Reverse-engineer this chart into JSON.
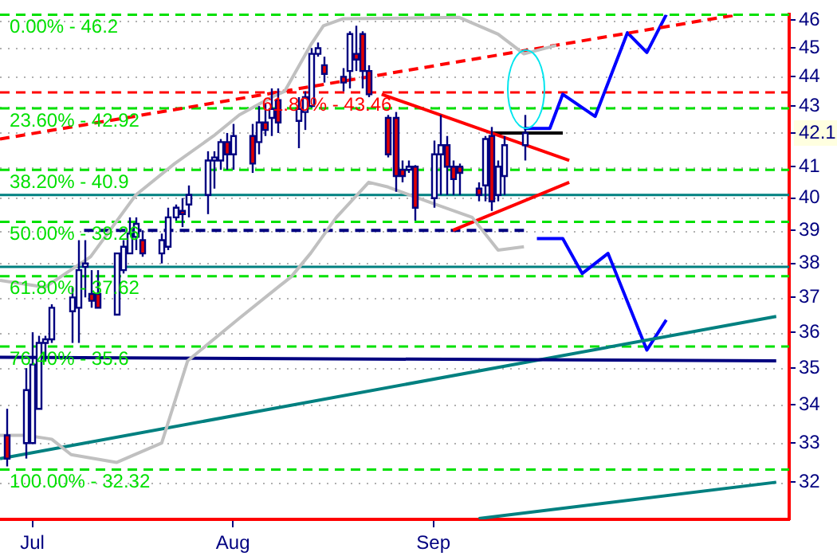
{
  "chart_data": {
    "type": "candlestick",
    "log": true,
    "grid": "y",
    "legend": false,
    "x": [
      "--06-27",
      "--06-30",
      "--07-01",
      "--07-02",
      "--07-03",
      "--07-04",
      "--07-07",
      "--07-08",
      "--07-09",
      "--07-10",
      "--07-11",
      "--07-14",
      "--07-15",
      "--07-16",
      "--07-17",
      "--07-18",
      "--07-21",
      "--07-22",
      "--07-23",
      "--07-24",
      "--07-25",
      "--07-28",
      "--07-29",
      "--07-30",
      "--07-31",
      "--08-01",
      "--08-04",
      "--08-05",
      "--08-06",
      "--08-07",
      "--08-08",
      "--08-11",
      "--08-12",
      "--08-13",
      "--08-14",
      "--08-15",
      "--08-18",
      "--08-19",
      "--08-20",
      "--08-21",
      "--08-22",
      "--08-25",
      "--08-26",
      "--08-27",
      "--08-28",
      "--08-29",
      "--09-01",
      "--09-02",
      "--09-03",
      "--09-04",
      "--09-05",
      "--09-08",
      "--09-09",
      "--09-10",
      "--09-11",
      "--09-12",
      "--09-15"
    ],
    "ohlc": [
      [
        33.2,
        33.9,
        32.4,
        32.6
      ],
      [
        33.0,
        35.0,
        32.6,
        34.4
      ],
      [
        33.0,
        36.0,
        33.0,
        35.1
      ],
      [
        33.9,
        35.9,
        33.9,
        35.7
      ],
      [
        35.7,
        35.9,
        35.2,
        35.8
      ],
      [
        35.8,
        36.8,
        35.7,
        36.7
      ],
      [
        36.6,
        37.3,
        35.7,
        37.0
      ],
      [
        36.7,
        38.7,
        35.7,
        37.8
      ],
      [
        37.9,
        38.7,
        37.0,
        38.0
      ],
      [
        37.1,
        37.8,
        36.7,
        36.9
      ],
      [
        37.1,
        37.8,
        36.7,
        36.7
      ],
      [
        36.5,
        38.3,
        36.5,
        38.3
      ],
      [
        37.8,
        38.7,
        37.7,
        38.5
      ],
      [
        38.3,
        39.4,
        38.3,
        38.9
      ],
      [
        38.8,
        39.4,
        38.4,
        39.2
      ],
      [
        38.7,
        39.0,
        38.2,
        38.3
      ],
      [
        38.3,
        38.9,
        38.0,
        38.7
      ],
      [
        38.5,
        39.7,
        38.4,
        39.4
      ],
      [
        39.4,
        39.8,
        39.3,
        39.7
      ],
      [
        39.6,
        40.0,
        39.1,
        39.5
      ],
      [
        39.8,
        40.4,
        39.4,
        40.1
      ],
      [
        40.1,
        41.5,
        39.5,
        41.2
      ],
      [
        41.2,
        41.5,
        40.3,
        41.3
      ],
      [
        41.2,
        41.9,
        40.9,
        41.8
      ],
      [
        41.8,
        42.1,
        40.9,
        41.4
      ],
      [
        41.4,
        42.4,
        40.9,
        42.0
      ],
      [
        42.0,
        42.4,
        40.8,
        41.1
      ],
      [
        41.8,
        43.0,
        41.4,
        42.45
      ],
      [
        42.45,
        43.1,
        42.0,
        42.2
      ],
      [
        42.6,
        43.6,
        42.0,
        42.9
      ],
      [
        43.2,
        43.6,
        42.1,
        42.45
      ],
      [
        42.5,
        43.3,
        41.6,
        42.9
      ],
      [
        42.8,
        43.5,
        42.2,
        43.3
      ],
      [
        43.0,
        45.0,
        42.95,
        44.8
      ],
      [
        44.8,
        45.2,
        44.7,
        45.0
      ],
      [
        44.4,
        44.7,
        43.8,
        44.1
      ],
      [
        44.0,
        44.3,
        43.5,
        43.8
      ],
      [
        44.2,
        45.6,
        43.6,
        45.5
      ],
      [
        44.8,
        45.8,
        44.2,
        44.6
      ],
      [
        45.5,
        45.6,
        43.6,
        44.2
      ],
      [
        44.2,
        44.4,
        43.3,
        43.4
      ],
      [
        42.6,
        42.7,
        41.3,
        41.4
      ],
      [
        42.6,
        42.8,
        40.2,
        40.7
      ],
      [
        40.9,
        41.2,
        40.5,
        40.7
      ],
      [
        40.9,
        41.2,
        40.8,
        41.0
      ],
      [
        41.0,
        41.05,
        39.3,
        39.7
      ],
      [
        40.0,
        41.85,
        39.7,
        41.4
      ],
      [
        41.4,
        42.7,
        40.1,
        41.7
      ],
      [
        41.7,
        42.0,
        40.1,
        41.0
      ],
      [
        41.0,
        41.2,
        40.1,
        40.6
      ],
      [
        41.0,
        41.1,
        40.1,
        40.8
      ],
      [
        40.3,
        40.5,
        39.9,
        40.1
      ],
      [
        40.4,
        42.0,
        39.9,
        41.9
      ],
      [
        42.0,
        42.3,
        39.6,
        39.9
      ],
      [
        40.1,
        41.2,
        39.9,
        41.0
      ],
      [
        40.7,
        42.0,
        40.1,
        41.7
      ],
      [
        41.7,
        42.7,
        41.2,
        42.1
      ]
    ],
    "series": [
      {
        "type": "line",
        "color": "#c0c0c0",
        "line_style": "solid",
        "x": [
          "--06-26",
          "--07-03",
          "--07-10",
          "--07-17",
          "--07-23",
          "--07-29",
          "--08-02",
          "--08-07",
          "--08-09",
          "--08-13",
          "--08-15",
          "--08-18",
          "--09-05",
          "--09-11",
          "--09-15",
          "--09-20"
        ],
        "values": [
          37.5,
          37.3,
          38.2,
          40.1,
          41.1,
          42.0,
          42.7,
          43.3,
          43.5,
          45.1,
          45.8,
          46.05,
          46.1,
          45.5,
          44.8,
          45.1
        ]
      },
      {
        "type": "line",
        "color": "#c0c0c0",
        "line_style": "solid",
        "x": [
          "--06-26",
          "--06-30",
          "--07-04",
          "--07-07",
          "--07-14",
          "--07-21",
          "--07-25",
          "--08-02",
          "--08-08",
          "--08-10",
          "--08-13",
          "--08-17",
          "--08-22",
          "--08-25",
          "--08-31",
          "--09-07",
          "--09-11",
          "--09-15"
        ],
        "values": [
          33.2,
          33.2,
          33.1,
          32.7,
          32.5,
          33.0,
          35.2,
          36.4,
          37.3,
          37.6,
          38.3,
          39.4,
          40.5,
          40.35,
          39.9,
          39.4,
          38.4,
          38.5
        ]
      },
      {
        "type": "line",
        "color": "#ff0000",
        "line_style": "dashed",
        "x": [
          "--06-26",
          "--10-18"
        ],
        "values": [
          41.9,
          46.2
        ]
      },
      {
        "type": "line",
        "color": "#ff0000",
        "line_style": "solid",
        "x": [
          "--08-24",
          "--09-22"
        ],
        "values": [
          43.4,
          41.2
        ]
      },
      {
        "type": "line",
        "color": "#ff0000",
        "line_style": "solid",
        "x": [
          "--09-04",
          "--09-22"
        ],
        "values": [
          39.0,
          40.5
        ]
      },
      {
        "type": "line",
        "color": "#000080",
        "line_style": "dashed",
        "x": [
          "--07-09",
          "--09-15"
        ],
        "values": [
          39.0,
          39.0
        ]
      },
      {
        "type": "line",
        "color": "#000080",
        "line_style": "solid",
        "x": [
          "--06-26",
          "--10-24"
        ],
        "values": [
          35.3,
          35.2
        ]
      },
      {
        "type": "line",
        "color": "#008080",
        "line_style": "solid",
        "x": [
          "--06-26",
          "--10-24"
        ],
        "values": [
          32.6,
          36.45
        ]
      },
      {
        "type": "line",
        "color": "#008080",
        "line_style": "solid",
        "x": [
          "--09-08",
          "--10-24"
        ],
        "values": [
          31.1,
          32.0
        ]
      },
      {
        "type": "line",
        "color": "#000000",
        "line_style": "solid",
        "x": [
          "--09-10",
          "--09-21"
        ],
        "values": [
          42.1,
          42.1
        ]
      },
      {
        "type": "line",
        "color": "#0000ff",
        "line_style": "solid",
        "x": [
          "--09-15",
          "--09-19",
          "--09-21",
          "--09-26",
          "--10-01",
          "--10-04",
          "--10-07"
        ],
        "values": [
          42.25,
          42.25,
          43.4,
          42.65,
          45.55,
          44.85,
          46.2
        ]
      },
      {
        "type": "line",
        "color": "#0000ff",
        "line_style": "solid",
        "x": [
          "--09-17",
          "--09-21",
          "--09-24",
          "--09-28",
          "--10-04",
          "--10-07"
        ],
        "values": [
          38.75,
          38.75,
          37.7,
          38.3,
          35.5,
          36.35
        ]
      }
    ],
    "ref_lines": [
      {
        "axis": "y",
        "value": 46.2,
        "color": "#00e000",
        "line_style": "dashed"
      },
      {
        "axis": "y",
        "value": 42.92,
        "color": "#00e000",
        "line_style": "dashed"
      },
      {
        "axis": "y",
        "value": 40.9,
        "color": "#00e000",
        "line_style": "dashed"
      },
      {
        "axis": "y",
        "value": 39.26,
        "color": "#00e000",
        "line_style": "dashed"
      },
      {
        "axis": "y",
        "value": 37.62,
        "color": "#00e000",
        "line_style": "dashed"
      },
      {
        "axis": "y",
        "value": 35.6,
        "color": "#00e000",
        "line_style": "dashed"
      },
      {
        "axis": "y",
        "value": 32.32,
        "color": "#00e000",
        "line_style": "dashed"
      },
      {
        "axis": "y",
        "value": 43.46,
        "color": "#ff0000",
        "line_style": "dashed"
      },
      {
        "axis": "y",
        "value": 40.1,
        "color": "#008080",
        "line_style": "solid"
      },
      {
        "axis": "y",
        "value": 37.9,
        "color": "#008080",
        "line_style": "solid"
      }
    ],
    "annotations": [
      {
        "text": "0.00% - 46.2",
        "x": "--06-27",
        "y": 46.2
      },
      {
        "text": "23.60% - 42.92",
        "x": "--06-27",
        "y": 42.92
      },
      {
        "text": "38.20% - 40.9",
        "x": "--06-27",
        "y": 40.9
      },
      {
        "text": "50.00% - 39.26",
        "x": "--06-27",
        "y": 39.26
      },
      {
        "text": "61.80% - 37.62",
        "x": "--06-27",
        "y": 37.62
      },
      {
        "text": "76.40% - 35.6",
        "x": "--06-27",
        "y": 35.6
      },
      {
        "text": "100.00% - 32.32",
        "x": "--06-27",
        "y": 32.32
      },
      {
        "text": "61.80% - 43.46",
        "x": "--08-05",
        "y": 43.46
      }
    ],
    "xlim": [
      "--06-26",
      "--10-26"
    ],
    "xticks": [
      {
        "value": "--07-01",
        "label": "Jul"
      },
      {
        "value": "--08-01",
        "label": "Aug"
      },
      {
        "value": "--09-01",
        "label": "Sep"
      }
    ],
    "ylim": [
      31.08,
      46.2
    ],
    "yticks": [
      32,
      33,
      34,
      35,
      36,
      37,
      38,
      39,
      40,
      41,
      {
        "value": 42.1,
        "label": "42.1"
      },
      43,
      44,
      45,
      46
    ]
  }
}
